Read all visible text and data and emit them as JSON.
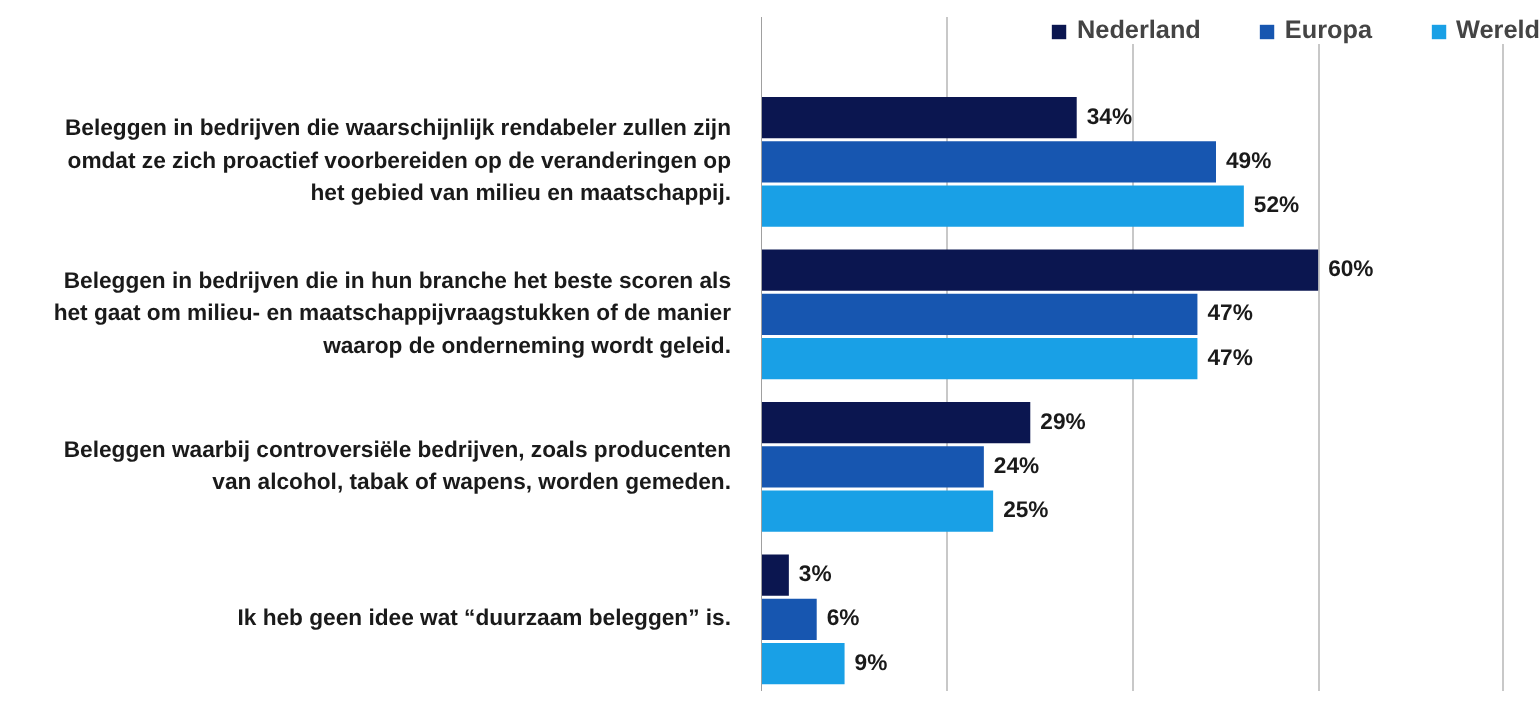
{
  "chart_data": {
    "type": "bar",
    "orientation": "horizontal",
    "categories": [
      "Beleggen in bedrijven die waarschijnlijk rendabeler zullen zijn\nomdat ze zich proactief voorbereiden op de veranderingen op\nhet gebied van milieu en maatschappij.",
      "Beleggen in bedrijven die in hun branche het beste scoren als\nhet gaat om milieu- en maatschappijvraagstukken of de manier\nwaarop de onderneming wordt geleid.",
      "Beleggen waarbij controversiële bedrijven, zoals producenten\nvan alcohol, tabak of wapens, worden gemeden.",
      "Ik heb geen idee wat “duurzaam beleggen” is."
    ],
    "series": [
      {
        "name": "Nederland",
        "color": "#0b1650",
        "values": [
          34,
          60,
          29,
          3
        ],
        "value_labels": [
          "34%",
          "60%",
          "29%",
          "3%"
        ]
      },
      {
        "name": "Europa",
        "color": "#1756b0",
        "values": [
          49,
          47,
          24,
          6
        ],
        "value_labels": [
          "49%",
          "47%",
          "24%",
          "6%"
        ]
      },
      {
        "name": "Wereld",
        "color": "#19a0e6",
        "values": [
          52,
          47,
          25,
          9
        ],
        "value_labels": [
          "52%",
          "47%",
          "25%",
          "9%"
        ]
      }
    ],
    "xlim": [
      0,
      84
    ],
    "xticks": [
      {
        "value": 0,
        "label": null
      },
      {
        "value": 20,
        "label": null
      },
      {
        "value": 40,
        "label": null
      },
      {
        "value": 60,
        "label": null
      },
      {
        "value": 80,
        "label": null
      }
    ],
    "tick_labels": "y",
    "grid": "x",
    "legend": "top right"
  }
}
